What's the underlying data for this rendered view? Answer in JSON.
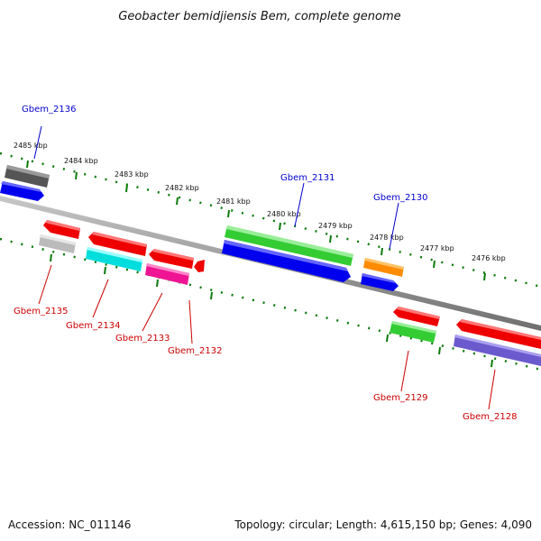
{
  "title": "Geobacter bemidjiensis Bem, complete genome",
  "footer": {
    "accession": "Accession: NC_011146",
    "summary": "Topology: circular; Length: 4,615,150 bp; Genes: 4,090"
  },
  "ticks": [
    "2485 kbp",
    "2484 kbp",
    "2483 kbp",
    "2482 kbp",
    "2481 kbp",
    "2480 kbp",
    "2479 kbp",
    "2478 kbp",
    "2477 kbp",
    "2476 kbp"
  ],
  "labels": {
    "gbem_2136": "Gbem_2136",
    "gbem_2131": "Gbem_2131",
    "gbem_2130": "Gbem_2130",
    "gbem_2135": "Gbem_2135",
    "gbem_2134": "Gbem_2134",
    "gbem_2133": "Gbem_2133",
    "gbem_2132": "Gbem_2132",
    "gbem_2129": "Gbem_2129",
    "gbem_2128": "Gbem_2128"
  },
  "colors": {
    "backbone": "#7a7a7a",
    "tick": "#0a7a0a",
    "cds": "#ff0000",
    "blue": "#0000ff",
    "green": "#33cc33",
    "gray": "#555555",
    "lightgray": "#bbbbbb",
    "cyan": "#00e5ee",
    "magenta": "#ff1493",
    "orange": "#ff8c00",
    "purple": "#6a5acd"
  }
}
